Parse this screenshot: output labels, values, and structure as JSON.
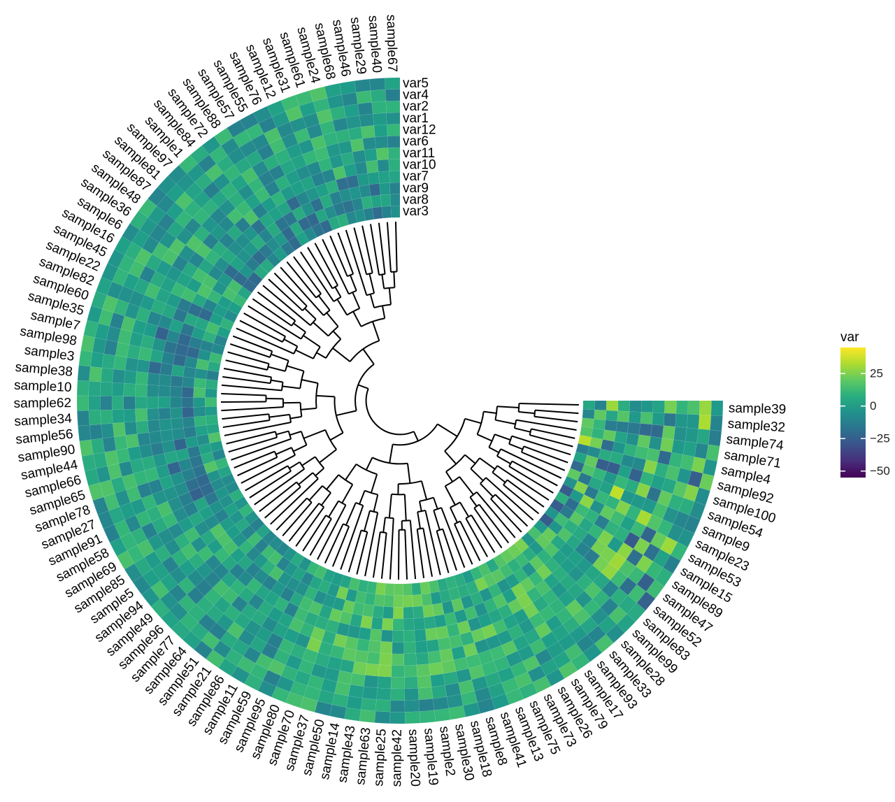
{
  "chart_data": {
    "type": "heatmap",
    "layout_kind": "circular heatmap with dendrogram",
    "samples": [
      "sample39",
      "sample32",
      "sample74",
      "sample71",
      "sample4",
      "sample92",
      "sample100",
      "sample54",
      "sample9",
      "sample23",
      "sample53",
      "sample15",
      "sample89",
      "sample47",
      "sample52",
      "sample83",
      "sample99",
      "sample28",
      "sample33",
      "sample93",
      "sample17",
      "sample79",
      "sample26",
      "sample73",
      "sample75",
      "sample13",
      "sample41",
      "sample8",
      "sample18",
      "sample30",
      "sample2",
      "sample19",
      "sample20",
      "sample42",
      "sample25",
      "sample63",
      "sample43",
      "sample14",
      "sample50",
      "sample37",
      "sample70",
      "sample80",
      "sample95",
      "sample59",
      "sample11",
      "sample86",
      "sample21",
      "sample51",
      "sample64",
      "sample77",
      "sample96",
      "sample49",
      "sample94",
      "sample5",
      "sample85",
      "sample69",
      "sample58",
      "sample91",
      "sample27",
      "sample78",
      "sample65",
      "sample66",
      "sample44",
      "sample90",
      "sample56",
      "sample34",
      "sample62",
      "sample10",
      "sample38",
      "sample3",
      "sample98",
      "sample7",
      "sample35",
      "sample60",
      "sample82",
      "sample22",
      "sample45",
      "sample16",
      "sample6",
      "sample36",
      "sample48",
      "sample87",
      "sample81",
      "sample97",
      "sample1",
      "sample84",
      "sample72",
      "sample88",
      "sample57",
      "sample55",
      "sample76",
      "sample12",
      "sample31",
      "sample61",
      "sample24",
      "sample68",
      "sample46",
      "sample29",
      "sample40",
      "sample67"
    ],
    "variables": [
      "var5",
      "var4",
      "var2",
      "var1",
      "var12",
      "var6",
      "var11",
      "var10",
      "var7",
      "var9",
      "var8",
      "var3"
    ],
    "legend": {
      "title": "var",
      "ticks": [
        25,
        0,
        -25,
        -50
      ],
      "tick_labels": [
        "25",
        "0",
        "−25",
        "−50"
      ],
      "range": [
        -55,
        45
      ],
      "colormap": "viridis"
    },
    "grid": false
  }
}
